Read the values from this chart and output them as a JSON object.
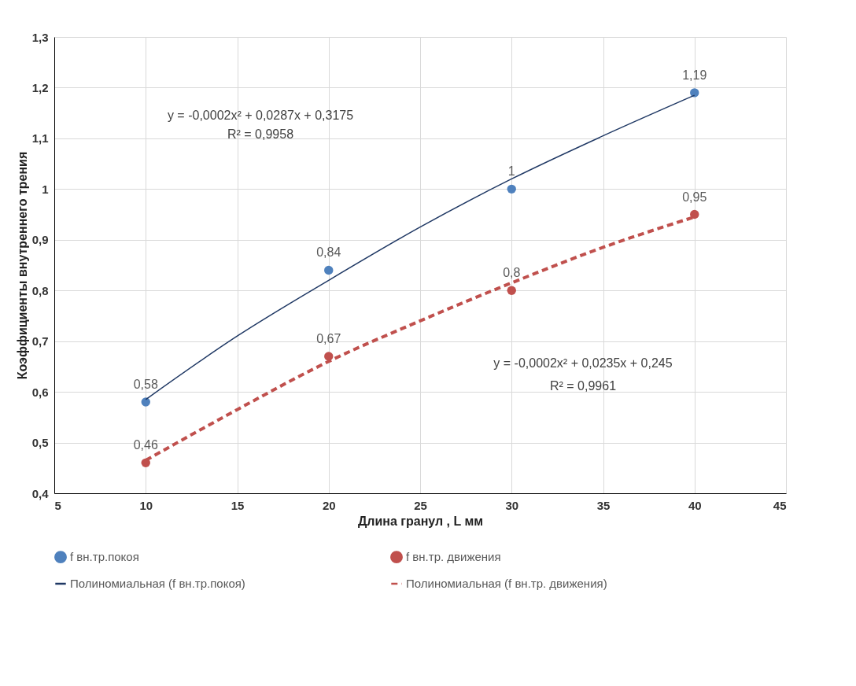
{
  "chart_data": {
    "type": "scatter",
    "xlabel": "Длина гранул , L мм",
    "ylabel": "Коэффициенты внутреннего трения",
    "x": [
      10,
      20,
      30,
      40
    ],
    "series": [
      {
        "name": "f вн.тр.покоя",
        "color": "#4f81bd",
        "values": [
          0.58,
          0.84,
          1,
          1.19
        ],
        "value_labels": [
          "0,58",
          "0,84",
          "1",
          "1,19"
        ]
      },
      {
        "name": "f вн.тр. движения",
        "color": "#c0504d",
        "values": [
          0.46,
          0.67,
          0.8,
          0.95
        ],
        "value_labels": [
          "0,46",
          "0,67",
          "0,8",
          "0,95"
        ]
      },
      {
        "name": "Полиномиальная (f вн.тр.покоя)",
        "type": "line",
        "color": "#1f3864",
        "line_style": "solid",
        "marker": "none",
        "x": [
          10,
          15,
          20,
          25,
          30,
          35,
          40
        ],
        "values": [
          0.585,
          0.71,
          0.82,
          0.925,
          1.02,
          1.105,
          1.185
        ]
      },
      {
        "name": "Полиномиальная (f вн.тр. движения)",
        "type": "line",
        "color": "#c0504d",
        "line_style": "dashed",
        "marker": "none",
        "x": [
          10,
          15,
          20,
          25,
          30,
          35,
          40
        ],
        "values": [
          0.465,
          0.565,
          0.66,
          0.74,
          0.815,
          0.885,
          0.945
        ]
      }
    ],
    "annotations": [
      "y = -0,0002x² + 0,0287x + 0,3175",
      "R² = 0,9958",
      "y = -0,0002x² + 0,0235x + 0,245",
      "R² = 0,9961"
    ],
    "xlim": [
      5,
      45
    ],
    "xticks": [
      5,
      10,
      15,
      20,
      25,
      30,
      35,
      40,
      45
    ],
    "ylim": [
      0.4,
      1.3
    ],
    "yticks": [
      {
        "value": 0.4,
        "label": "0,4"
      },
      {
        "value": 0.5,
        "label": "0,5"
      },
      {
        "value": 0.6,
        "label": "0,6"
      },
      {
        "value": 0.7,
        "label": "0,7"
      },
      {
        "value": 0.8,
        "label": "0,8"
      },
      {
        "value": 0.9,
        "label": "0,9"
      },
      1,
      {
        "value": 1.1,
        "label": "1,1"
      },
      {
        "value": 1.2,
        "label": "1,2"
      },
      {
        "value": 1.3,
        "label": "1,3"
      }
    ],
    "grid": true,
    "legend": "bottom",
    "marker": "circle"
  }
}
